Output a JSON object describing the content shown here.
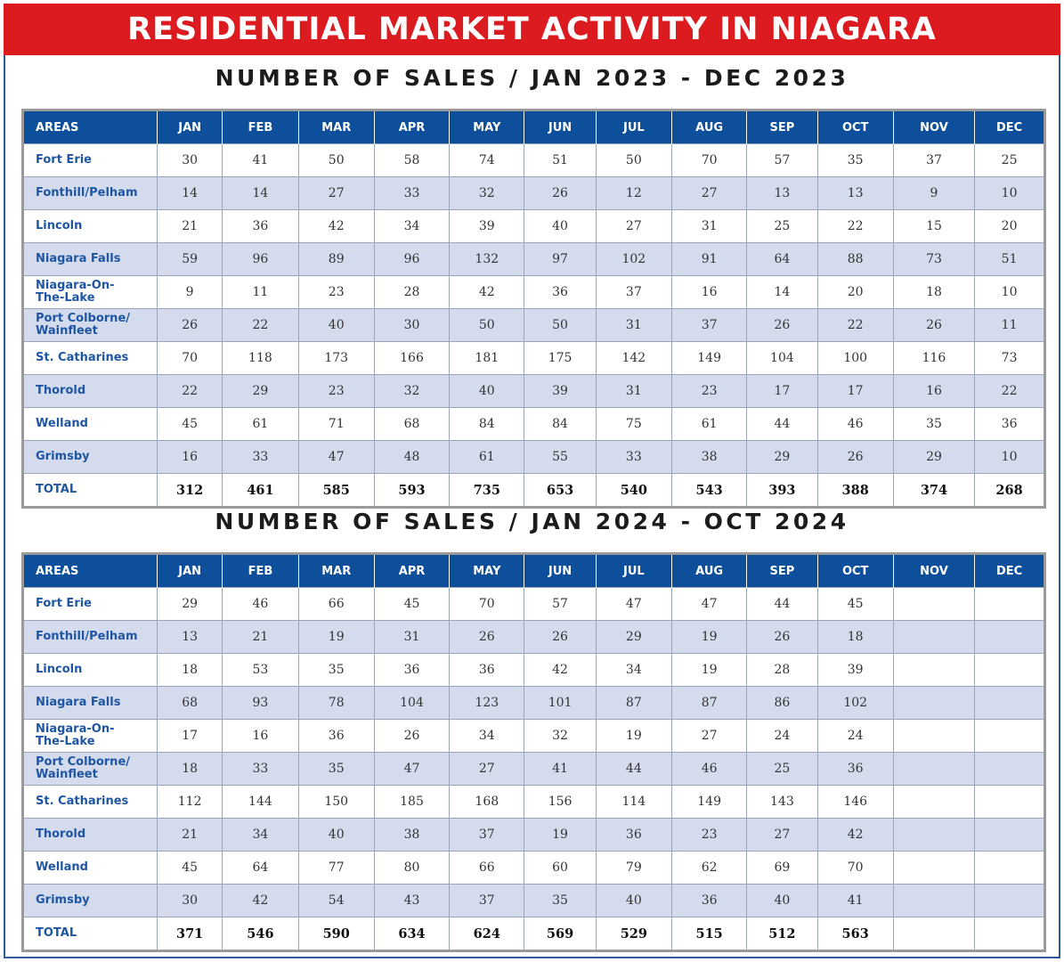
{
  "banner": "RESIDENTIAL MARKET ACTIVITY IN NIAGARA",
  "colors": {
    "banner": "#db1b1f",
    "header": "#0d4f9a",
    "alt_row": "#d4dbed",
    "area_text": "#1f56a3"
  },
  "columns": [
    "AREAS",
    "JAN",
    "FEB",
    "MAR",
    "APR",
    "MAY",
    "JUN",
    "JUL",
    "AUG",
    "SEP",
    "OCT",
    "NOV",
    "DEC"
  ],
  "tables": [
    {
      "title": "NUMBER OF SALES / JAN 2023 - DEC 2023",
      "rows": [
        {
          "area": "Fort Erie",
          "values": [
            "30",
            "41",
            "50",
            "58",
            "74",
            "51",
            "50",
            "70",
            "57",
            "35",
            "37",
            "25"
          ]
        },
        {
          "area": "Fonthill/Pelham",
          "values": [
            "14",
            "14",
            "27",
            "33",
            "32",
            "26",
            "12",
            "27",
            "13",
            "13",
            "9",
            "10"
          ]
        },
        {
          "area": "Lincoln",
          "values": [
            "21",
            "36",
            "42",
            "34",
            "39",
            "40",
            "27",
            "31",
            "25",
            "22",
            "15",
            "20"
          ]
        },
        {
          "area": "Niagara Falls",
          "values": [
            "59",
            "96",
            "89",
            "96",
            "132",
            "97",
            "102",
            "91",
            "64",
            "88",
            "73",
            "51"
          ]
        },
        {
          "area": "Niagara-On-\nThe-Lake",
          "values": [
            "9",
            "11",
            "23",
            "28",
            "42",
            "36",
            "37",
            "16",
            "14",
            "20",
            "18",
            "10"
          ]
        },
        {
          "area": "Port Colborne/\nWainfleet",
          "values": [
            "26",
            "22",
            "40",
            "30",
            "50",
            "50",
            "31",
            "37",
            "26",
            "22",
            "26",
            "11"
          ]
        },
        {
          "area": "St. Catharines",
          "values": [
            "70",
            "118",
            "173",
            "166",
            "181",
            "175",
            "142",
            "149",
            "104",
            "100",
            "116",
            "73"
          ]
        },
        {
          "area": "Thorold",
          "values": [
            "22",
            "29",
            "23",
            "32",
            "40",
            "39",
            "31",
            "23",
            "17",
            "17",
            "16",
            "22"
          ]
        },
        {
          "area": "Welland",
          "values": [
            "45",
            "61",
            "71",
            "68",
            "84",
            "84",
            "75",
            "61",
            "44",
            "46",
            "35",
            "36"
          ]
        },
        {
          "area": "Grimsby",
          "values": [
            "16",
            "33",
            "47",
            "48",
            "61",
            "55",
            "33",
            "38",
            "29",
            "26",
            "29",
            "10"
          ]
        }
      ],
      "total": {
        "area": "TOTAL",
        "values": [
          "312",
          "461",
          "585",
          "593",
          "735",
          "653",
          "540",
          "543",
          "393",
          "388",
          "374",
          "268"
        ]
      }
    },
    {
      "title": "NUMBER OF SALES / JAN 2024 - OCT 2024",
      "rows": [
        {
          "area": "Fort Erie",
          "values": [
            "29",
            "46",
            "66",
            "45",
            "70",
            "57",
            "47",
            "47",
            "44",
            "45",
            "",
            ""
          ]
        },
        {
          "area": "Fonthill/Pelham",
          "values": [
            "13",
            "21",
            "19",
            "31",
            "26",
            "26",
            "29",
            "19",
            "26",
            "18",
            "",
            ""
          ]
        },
        {
          "area": "Lincoln",
          "values": [
            "18",
            "53",
            "35",
            "36",
            "36",
            "42",
            "34",
            "19",
            "28",
            "39",
            "",
            ""
          ]
        },
        {
          "area": "Niagara Falls",
          "values": [
            "68",
            "93",
            "78",
            "104",
            "123",
            "101",
            "87",
            "87",
            "86",
            "102",
            "",
            ""
          ]
        },
        {
          "area": "Niagara-On-\nThe-Lake",
          "values": [
            "17",
            "16",
            "36",
            "26",
            "34",
            "32",
            "19",
            "27",
            "24",
            "24",
            "",
            ""
          ]
        },
        {
          "area": "Port Colborne/\nWainfleet",
          "values": [
            "18",
            "33",
            "35",
            "47",
            "27",
            "41",
            "44",
            "46",
            "25",
            "36",
            "",
            ""
          ]
        },
        {
          "area": "St. Catharines",
          "values": [
            "112",
            "144",
            "150",
            "185",
            "168",
            "156",
            "114",
            "149",
            "143",
            "146",
            "",
            ""
          ]
        },
        {
          "area": "Thorold",
          "values": [
            "21",
            "34",
            "40",
            "38",
            "37",
            "19",
            "36",
            "23",
            "27",
            "42",
            "",
            ""
          ]
        },
        {
          "area": "Welland",
          "values": [
            "45",
            "64",
            "77",
            "80",
            "66",
            "60",
            "79",
            "62",
            "69",
            "70",
            "",
            ""
          ]
        },
        {
          "area": "Grimsby",
          "values": [
            "30",
            "42",
            "54",
            "43",
            "37",
            "35",
            "40",
            "36",
            "40",
            "41",
            "",
            ""
          ]
        }
      ],
      "total": {
        "area": "TOTAL",
        "values": [
          "371",
          "546",
          "590",
          "634",
          "624",
          "569",
          "529",
          "515",
          "512",
          "563",
          "",
          ""
        ]
      }
    }
  ]
}
